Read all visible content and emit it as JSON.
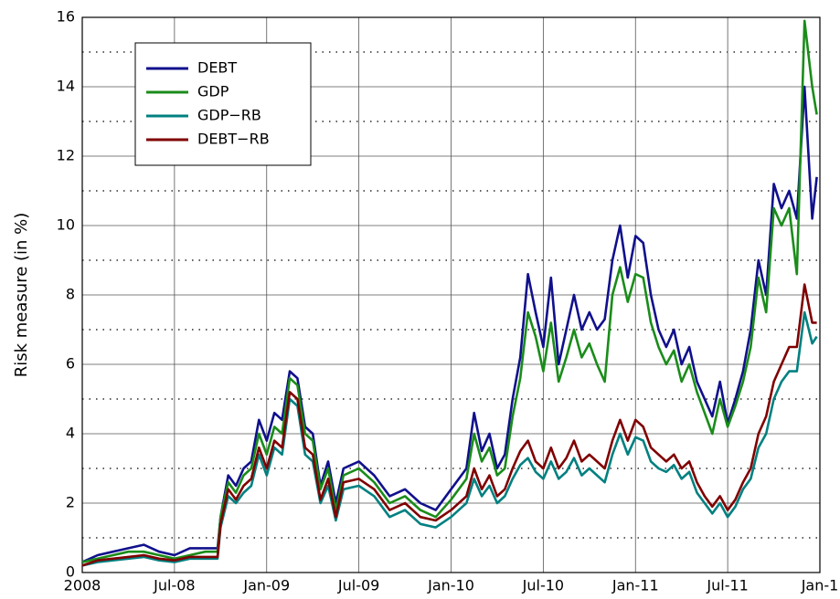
{
  "chart_data": {
    "type": "line",
    "ylabel": "Risk measure (in %)",
    "x": [
      0,
      1,
      2,
      3,
      4,
      5,
      6,
      7,
      8,
      8.8,
      9,
      9.5,
      10,
      10.5,
      11,
      11.5,
      12,
      12.5,
      13,
      13.5,
      14,
      14.5,
      15,
      15.5,
      16,
      16.5,
      17,
      18,
      19,
      20,
      21,
      22,
      23,
      24,
      25,
      25.5,
      26,
      26.5,
      27,
      27.5,
      28,
      28.5,
      29,
      29.5,
      30,
      30.5,
      31,
      31.5,
      32,
      32.5,
      33,
      33.5,
      34,
      34.5,
      35,
      35.5,
      36,
      36.5,
      37,
      37.5,
      38,
      38.5,
      39,
      39.5,
      40,
      40.5,
      41,
      41.5,
      42,
      42.5,
      43,
      43.5,
      44,
      44.5,
      45,
      45.5,
      46,
      46.5,
      47,
      47.5,
      47.8
    ],
    "series": [
      {
        "name": "DEBT",
        "color": "#10108c",
        "values": [
          0.3,
          0.5,
          0.6,
          0.7,
          0.8,
          0.6,
          0.5,
          0.7,
          0.7,
          0.7,
          1.6,
          2.8,
          2.5,
          3.0,
          3.2,
          4.4,
          3.8,
          4.6,
          4.4,
          5.8,
          5.6,
          4.2,
          4.0,
          2.5,
          3.2,
          2.0,
          3.0,
          3.2,
          2.8,
          2.2,
          2.4,
          2.0,
          1.8,
          2.4,
          3.0,
          4.6,
          3.5,
          4.0,
          3.0,
          3.4,
          5.0,
          6.2,
          8.6,
          7.5,
          6.5,
          8.5,
          6.0,
          7.0,
          8.0,
          7.0,
          7.5,
          7.0,
          7.3,
          9.0,
          10.0,
          8.5,
          9.7,
          9.5,
          8.0,
          7.0,
          6.5,
          7.0,
          6.0,
          6.5,
          5.5,
          5.0,
          4.5,
          5.5,
          4.3,
          5.0,
          5.8,
          7.0,
          9.0,
          8.0,
          11.2,
          10.5,
          11.0,
          10.2,
          14.0,
          10.2,
          11.4
        ]
      },
      {
        "name": "GDP",
        "color": "#1a8c1a",
        "values": [
          0.3,
          0.4,
          0.5,
          0.6,
          0.6,
          0.5,
          0.4,
          0.5,
          0.6,
          0.6,
          1.6,
          2.6,
          2.3,
          2.8,
          3.0,
          4.0,
          3.4,
          4.2,
          4.0,
          5.6,
          5.4,
          4.0,
          3.8,
          2.4,
          3.0,
          1.8,
          2.8,
          3.0,
          2.6,
          2.0,
          2.2,
          1.8,
          1.6,
          2.1,
          2.7,
          4.0,
          3.2,
          3.6,
          2.8,
          3.0,
          4.5,
          5.6,
          7.5,
          6.8,
          5.8,
          7.2,
          5.5,
          6.2,
          7.0,
          6.2,
          6.6,
          6.0,
          5.5,
          8.0,
          8.8,
          7.8,
          8.6,
          8.5,
          7.2,
          6.5,
          6.0,
          6.4,
          5.5,
          6.0,
          5.2,
          4.6,
          4.0,
          5.0,
          4.2,
          4.8,
          5.5,
          6.5,
          8.5,
          7.5,
          10.5,
          10.0,
          10.5,
          8.6,
          15.9,
          14.0,
          13.2
        ]
      },
      {
        "name": "GDP−RB",
        "color": "#008080",
        "values": [
          0.2,
          0.3,
          0.35,
          0.4,
          0.45,
          0.35,
          0.3,
          0.4,
          0.4,
          0.4,
          1.3,
          2.2,
          2.0,
          2.3,
          2.5,
          3.4,
          2.8,
          3.6,
          3.4,
          5.0,
          4.8,
          3.4,
          3.2,
          2.0,
          2.5,
          1.5,
          2.4,
          2.5,
          2.2,
          1.6,
          1.8,
          1.4,
          1.3,
          1.6,
          2.0,
          2.7,
          2.2,
          2.5,
          2.0,
          2.2,
          2.7,
          3.1,
          3.3,
          2.9,
          2.7,
          3.2,
          2.7,
          2.9,
          3.3,
          2.8,
          3.0,
          2.8,
          2.6,
          3.4,
          4.0,
          3.4,
          3.9,
          3.8,
          3.2,
          3.0,
          2.9,
          3.1,
          2.7,
          2.9,
          2.3,
          2.0,
          1.7,
          2.0,
          1.6,
          1.9,
          2.4,
          2.7,
          3.6,
          4.0,
          5.0,
          5.5,
          5.8,
          5.8,
          7.5,
          6.6,
          6.8
        ]
      },
      {
        "name": "DEBT−RB",
        "color": "#800000",
        "values": [
          0.2,
          0.35,
          0.4,
          0.45,
          0.5,
          0.4,
          0.35,
          0.45,
          0.45,
          0.45,
          1.4,
          2.4,
          2.1,
          2.5,
          2.7,
          3.6,
          3.0,
          3.8,
          3.6,
          5.2,
          5.0,
          3.6,
          3.4,
          2.1,
          2.7,
          1.6,
          2.6,
          2.7,
          2.4,
          1.8,
          2.0,
          1.6,
          1.5,
          1.8,
          2.2,
          3.0,
          2.4,
          2.8,
          2.2,
          2.4,
          3.0,
          3.5,
          3.8,
          3.2,
          3.0,
          3.6,
          3.0,
          3.3,
          3.8,
          3.2,
          3.4,
          3.2,
          3.0,
          3.8,
          4.4,
          3.8,
          4.4,
          4.2,
          3.6,
          3.4,
          3.2,
          3.4,
          3.0,
          3.2,
          2.6,
          2.2,
          1.9,
          2.2,
          1.8,
          2.1,
          2.6,
          3.0,
          4.0,
          4.5,
          5.5,
          6.0,
          6.5,
          6.5,
          8.3,
          7.2,
          7.2
        ]
      }
    ],
    "xlim": [
      0,
      48
    ],
    "xticks": [
      {
        "value": 0,
        "label": "2008"
      },
      {
        "value": 6,
        "label": "Jul-08"
      },
      {
        "value": 12,
        "label": "Jan-09"
      },
      {
        "value": 18,
        "label": "Jul-09"
      },
      {
        "value": 24,
        "label": "Jan-10"
      },
      {
        "value": 30,
        "label": "Jul-10"
      },
      {
        "value": 36,
        "label": "Jan-11"
      },
      {
        "value": 42,
        "label": "Jul-11"
      },
      {
        "value": 48,
        "label": "Jan-1"
      }
    ],
    "ylim": [
      0,
      16
    ],
    "yticks": [
      0,
      2,
      4,
      6,
      8,
      10,
      12,
      14,
      16
    ],
    "yminor_ticks": [
      1,
      3,
      5,
      7,
      9,
      11,
      13,
      15
    ],
    "grid": true,
    "legend": "upper left"
  }
}
